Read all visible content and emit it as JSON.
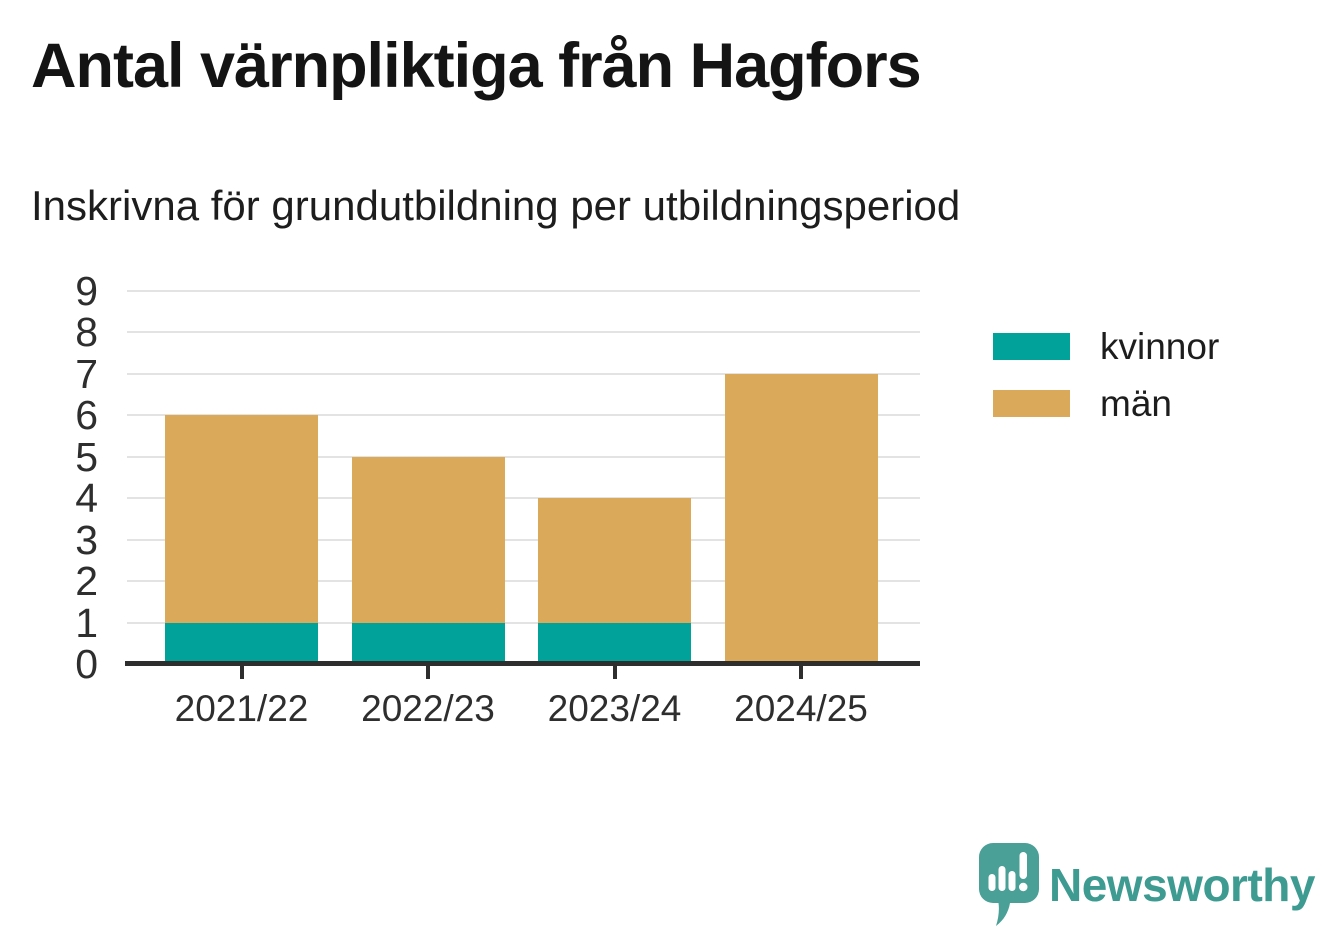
{
  "header": {
    "title": "Antal värnpliktiga från Hagfors",
    "subtitle": "Inskrivna för grundutbildning per utbildningsperiod"
  },
  "chart_data": {
    "type": "bar",
    "stacked": true,
    "title": "Antal värnpliktiga från Hagfors",
    "subtitle": "Inskrivna för grundutbildning per utbildningsperiod",
    "categories": [
      "2021/22",
      "2022/23",
      "2023/24",
      "2024/25"
    ],
    "series": [
      {
        "name": "kvinnor",
        "color": "#00a29a",
        "values": [
          1,
          1,
          1,
          0
        ]
      },
      {
        "name": "män",
        "color": "#daa95a",
        "values": [
          5,
          4,
          3,
          7
        ]
      }
    ],
    "totals": [
      6,
      5,
      4,
      7
    ],
    "xlabel": "",
    "ylabel": "",
    "ylim": [
      0,
      9
    ],
    "yticks": [
      0,
      1,
      2,
      3,
      4,
      5,
      6,
      7,
      8,
      9
    ],
    "grid": true,
    "legend_position": "right"
  },
  "colors": {
    "axis": "#2e2e2e",
    "grid": "#e3e3e3",
    "title_text": "#141414",
    "background": "#ffffff"
  },
  "footer": {
    "brand_name": "Newsworthy",
    "brand_color": "#3d9b91",
    "logo_color": "#4aa096",
    "logo_icon": "bar-chart-exclamation-speech-bubble-icon"
  }
}
